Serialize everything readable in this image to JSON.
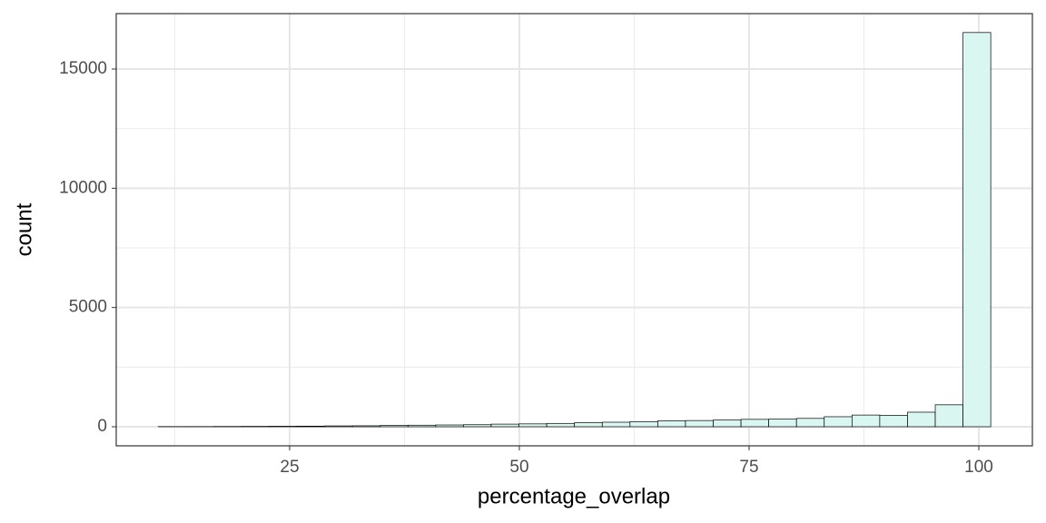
{
  "chart_data": {
    "type": "histogram",
    "x_label": "percentage_overlap",
    "y_label": "count",
    "bins": [
      10.7,
      13.72,
      16.74,
      19.76,
      22.78,
      25.8,
      28.82,
      31.84,
      34.86,
      37.88,
      40.9,
      43.92,
      46.94,
      49.96,
      52.98,
      56.0,
      59.02,
      62.04,
      65.06,
      68.08,
      71.1,
      74.12,
      77.14,
      80.16,
      83.18,
      86.2,
      89.22,
      92.24,
      95.26,
      98.28,
      101.3
    ],
    "values": [
      5,
      5,
      10,
      15,
      20,
      25,
      35,
      40,
      55,
      65,
      75,
      85,
      110,
      120,
      140,
      170,
      190,
      210,
      250,
      260,
      280,
      310,
      320,
      350,
      420,
      490,
      480,
      610,
      920,
      16530
    ],
    "color": "#d9f6f1",
    "edgecolor": "#000000",
    "xlim": [
      6.13,
      105.83
    ],
    "ylim": [
      -800,
      17323
    ],
    "xticks": [
      25,
      50,
      75,
      100
    ],
    "yticks": [
      0,
      5000,
      10000,
      15000
    ],
    "grid": true
  }
}
